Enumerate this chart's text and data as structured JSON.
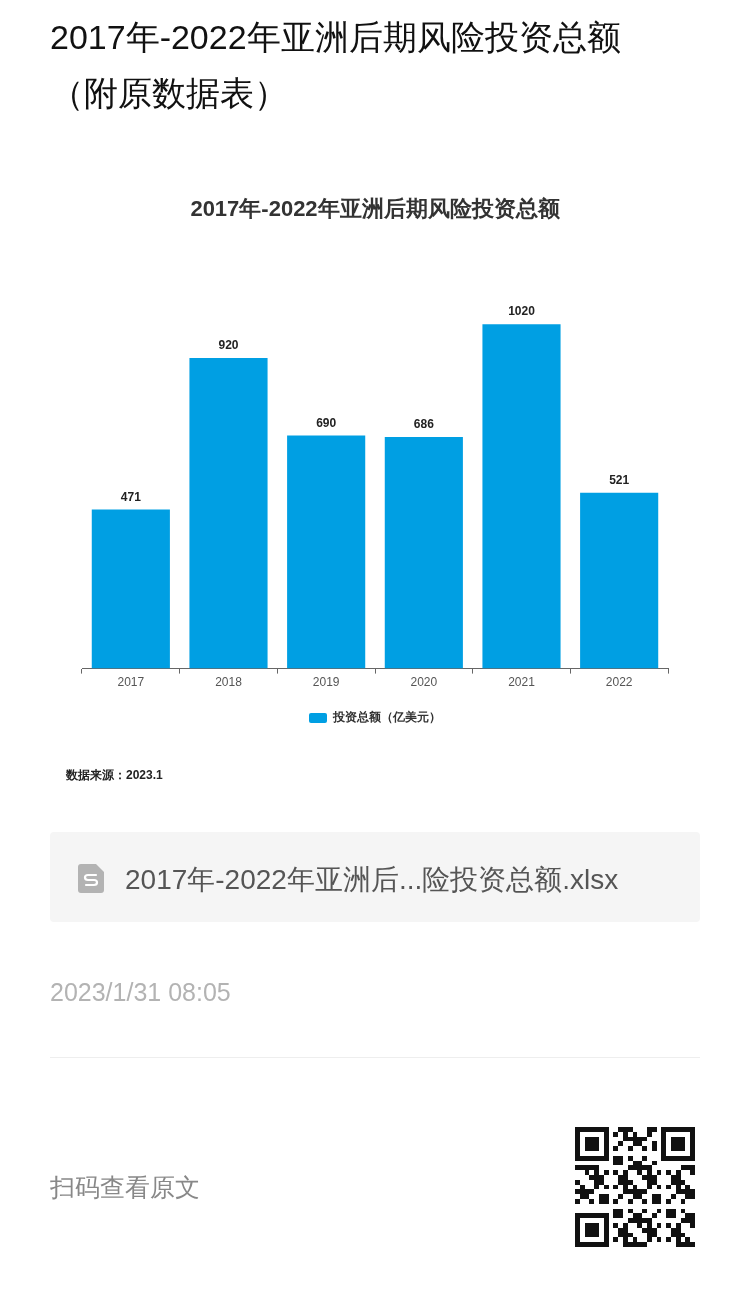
{
  "chart_data": {
    "type": "bar",
    "title": "2017年-2022年亚洲后期风险投资总额",
    "categories": [
      "2017",
      "2018",
      "2019",
      "2020",
      "2021",
      "2022"
    ],
    "series": [
      {
        "name": "投资总额（亿美元）",
        "color": "#009fe3",
        "values": [
          471,
          920,
          690,
          686,
          1020,
          521
        ]
      }
    ],
    "data_labels": true,
    "legend": "bottom",
    "annotations": [
      "2017年-2022年亚洲后期风险投资总额（附原数据表）",
      "数据来源：2023.1",
      "2017年-2022年亚洲后...险投资总额.xlsx",
      "2023/1/31 08:05",
      "扫码查看原文"
    ]
  }
}
